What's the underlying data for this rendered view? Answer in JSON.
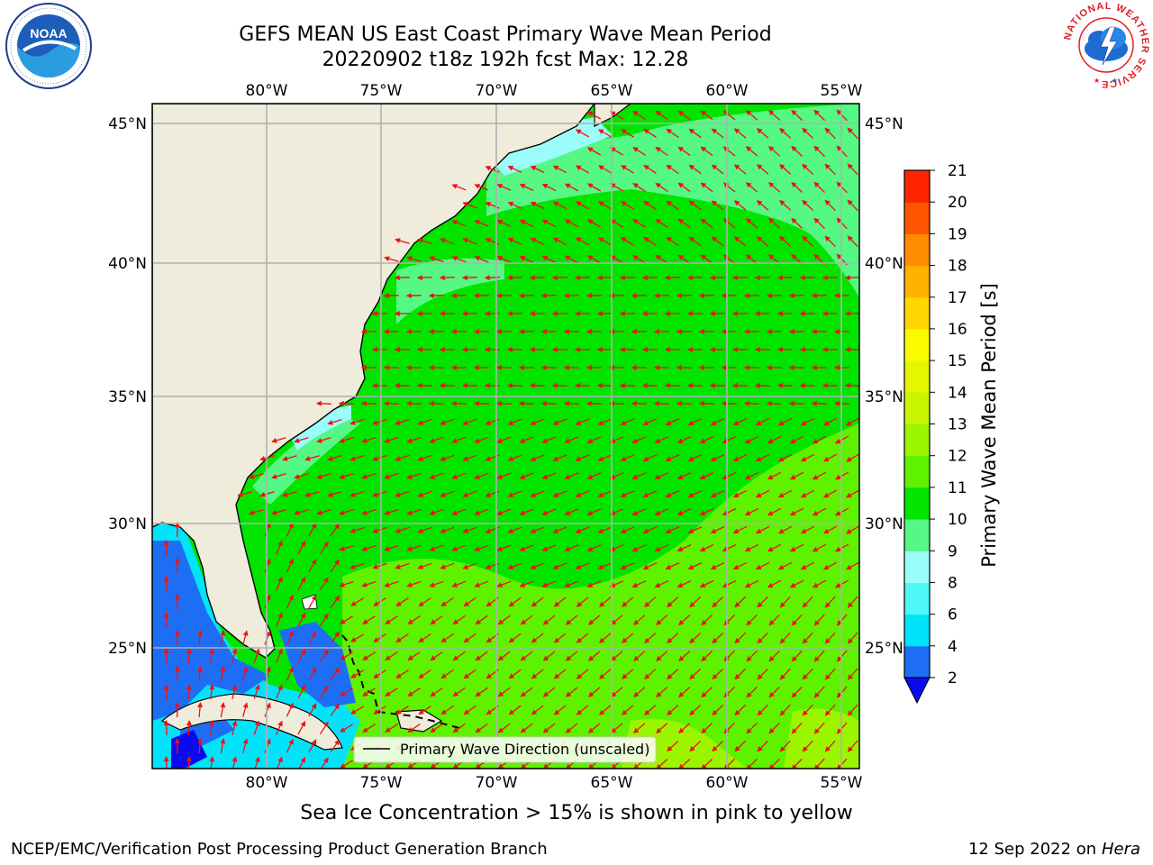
{
  "header": {
    "title_line1": "GEFS MEAN US East Coast Primary Wave Mean Period",
    "title_line2": "20220902 t18z 192h fcst   Max: 12.28"
  },
  "logos": {
    "left": "noaa-logo",
    "right": "national-weather-service-logo",
    "right_ring_text": "NATIONAL WEATHER SERVICE"
  },
  "map": {
    "lon_ticks": [
      "80°W",
      "75°W",
      "70°W",
      "65°W",
      "60°W",
      "55°W"
    ],
    "lat_ticks": [
      "45°N",
      "40°N",
      "35°N",
      "30°N",
      "25°N"
    ],
    "land_color": "#efecdc",
    "grid_color": "#b0b0b0",
    "arrow_color": "#ee1111",
    "legend_label": "Primary Wave Direction (unscaled)"
  },
  "colorbar": {
    "label": "Primary Wave Mean Period [s]",
    "ticks": [
      "2",
      "4",
      "6",
      "8",
      "9",
      "10",
      "11",
      "12",
      "13",
      "14",
      "15",
      "16",
      "17",
      "18",
      "19",
      "20",
      "21"
    ],
    "colors": [
      "#0a0af0",
      "#1e6ef5",
      "#00e4fa",
      "#4ff8f8",
      "#9afdfa",
      "#55f785",
      "#00e400",
      "#5ef200",
      "#9cf500",
      "#c8f500",
      "#e4f700",
      "#fbfb00",
      "#ffd700",
      "#ffb300",
      "#ff8c00",
      "#ff5500",
      "#ff2400",
      "#fc0000"
    ]
  },
  "footer": {
    "caption": "Sea Ice Concentration > 15% is shown in pink to yellow",
    "credit": "NCEP/EMC/Verification Post Processing Product Generation Branch",
    "date": "12 Sep 2022 on",
    "machine": "Hera"
  }
}
